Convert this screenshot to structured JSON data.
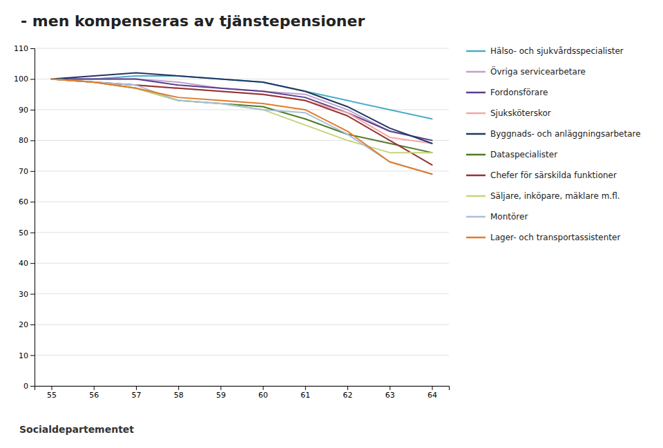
{
  "chart_data": {
    "type": "line",
    "title": "- men kompenseras av tjänstepensioner",
    "x": [
      55,
      56,
      57,
      58,
      59,
      60,
      61,
      62,
      63,
      64
    ],
    "series": [
      {
        "name": "Hälso- och sjukvårdsspecialister",
        "color": "#4BACC6",
        "values": [
          100,
          100,
          101,
          101,
          100,
          99,
          96,
          93,
          90,
          87
        ]
      },
      {
        "name": "Övriga servicearbetare",
        "color": "#C0A0CC",
        "values": [
          100,
          100,
          100,
          99,
          97,
          96,
          95,
          90,
          83,
          80
        ]
      },
      {
        "name": "Fordonsförare",
        "color": "#5B3E8C",
        "values": [
          100,
          100,
          100,
          98,
          97,
          96,
          94,
          89,
          83,
          80
        ]
      },
      {
        "name": "Sjuksköterskor",
        "color": "#F4A7A5",
        "values": [
          100,
          99,
          98,
          97,
          96,
          95,
          93,
          89,
          81,
          79
        ]
      },
      {
        "name": "Byggnads- och anläggningsarbetare",
        "color": "#1F3864",
        "values": [
          100,
          101,
          102,
          101,
          100,
          99,
          96,
          91,
          84,
          79
        ]
      },
      {
        "name": "Dataspecialister",
        "color": "#4E7A2A",
        "values": [
          100,
          99,
          97,
          93,
          92,
          91,
          87,
          82,
          79,
          76
        ]
      },
      {
        "name": "Chefer för särskilda funktioner",
        "color": "#943232",
        "values": [
          100,
          99,
          98,
          97,
          96,
          95,
          93,
          88,
          80,
          72
        ]
      },
      {
        "name": "Säljare, inköpare, mäklare m.fl.",
        "color": "#C4D57A",
        "values": [
          100,
          99,
          97,
          93,
          92,
          90,
          85,
          80,
          76,
          76
        ]
      },
      {
        "name": "Montörer",
        "color": "#A8C0D6",
        "values": [
          100,
          99,
          98,
          93,
          92,
          90,
          89,
          82,
          73,
          69
        ]
      },
      {
        "name": "Lager- och transportassistenter",
        "color": "#E07B2A",
        "values": [
          100,
          99,
          97,
          94,
          93,
          92,
          90,
          83,
          73,
          69
        ]
      }
    ],
    "xlim": [
      54.6,
      64.4
    ],
    "xticks": [
      55,
      56,
      57,
      58,
      59,
      60,
      61,
      62,
      63,
      64
    ],
    "ylim": [
      0,
      110
    ],
    "yticks": [
      0,
      10,
      20,
      30,
      40,
      50,
      60,
      70,
      80,
      90,
      100,
      110
    ],
    "grid": true,
    "legend": "right",
    "annotations": [
      "Socialdepartementet"
    ]
  }
}
